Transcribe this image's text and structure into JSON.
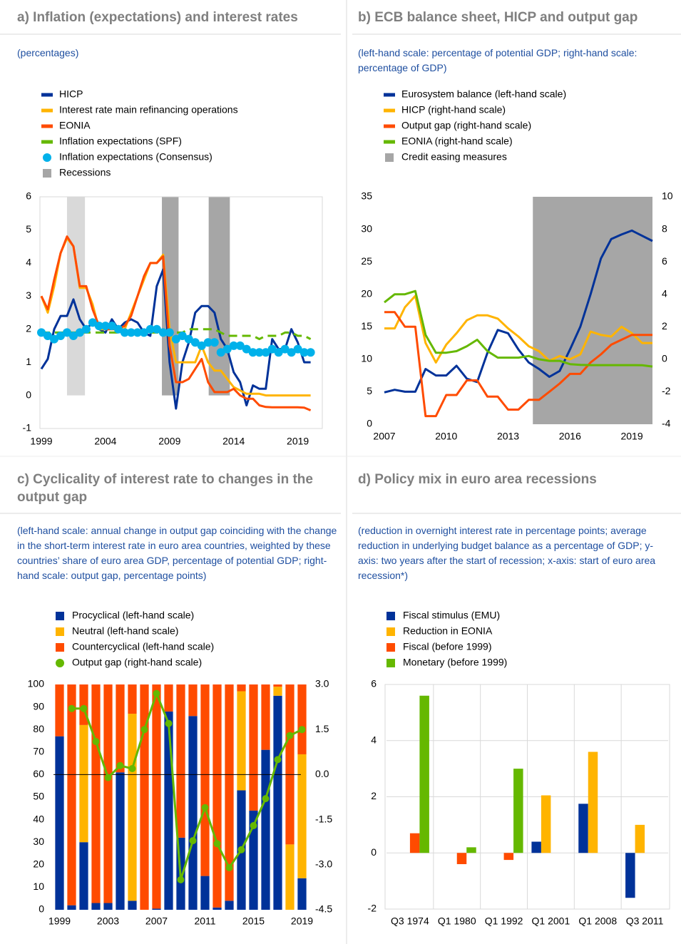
{
  "chart_data": [
    {
      "type": "line",
      "title": "a) Inflation (expectations) and interest rates",
      "subtitle": "(percentages)",
      "x": [
        1999,
        1999.5,
        2000,
        2000.5,
        2001,
        2001.5,
        2002,
        2002.5,
        2003,
        2003.5,
        2004,
        2004.5,
        2005,
        2005.5,
        2006,
        2006.5,
        2007,
        2007.5,
        2008,
        2008.5,
        2009,
        2009.5,
        2010,
        2010.5,
        2011,
        2011.5,
        2012,
        2012.5,
        2013,
        2013.5,
        2014,
        2014.5,
        2015,
        2015.5,
        2016,
        2016.5,
        2017,
        2017.5,
        2018,
        2018.5,
        2019,
        2019.5,
        2020
      ],
      "xlim": [
        1999,
        2020.8
      ],
      "xticks": [
        1999,
        2004,
        2009,
        2014,
        2019
      ],
      "ylim": [
        -1,
        6
      ],
      "yticks": [
        -1,
        0,
        1,
        2,
        3,
        4,
        5,
        6
      ],
      "series": [
        {
          "name": "HICP",
          "color": "#003299",
          "values": [
            0.8,
            1.1,
            2.0,
            2.4,
            2.4,
            2.9,
            2.3,
            2.0,
            2.2,
            2.0,
            1.9,
            2.3,
            2.0,
            2.2,
            2.3,
            2.2,
            1.9,
            1.8,
            3.3,
            3.8,
            1.0,
            -0.4,
            1.0,
            1.6,
            2.5,
            2.7,
            2.7,
            2.5,
            1.7,
            1.4,
            0.7,
            0.4,
            -0.3,
            0.3,
            0.2,
            0.2,
            1.7,
            1.4,
            1.4,
            2.0,
            1.6,
            1.0,
            1.0
          ]
        },
        {
          "name": "Interest rate main refinancing operations",
          "color": "#ffb400",
          "values": [
            3.0,
            2.5,
            3.3,
            4.3,
            4.75,
            4.5,
            3.25,
            3.25,
            2.75,
            2.0,
            2.0,
            2.0,
            2.0,
            2.0,
            2.5,
            3.0,
            3.5,
            4.0,
            4.0,
            4.25,
            2.0,
            1.0,
            1.0,
            1.0,
            1.0,
            1.5,
            1.0,
            0.75,
            0.75,
            0.5,
            0.25,
            0.15,
            0.05,
            0.05,
            0.05,
            0,
            0,
            0,
            0,
            0,
            0,
            0,
            0
          ]
        },
        {
          "name": "EONIA",
          "color": "#ff4b00",
          "values": [
            3.0,
            2.6,
            3.5,
            4.3,
            4.8,
            4.5,
            3.3,
            3.3,
            2.6,
            2.1,
            2.0,
            2.0,
            2.0,
            2.1,
            2.4,
            3.0,
            3.6,
            4.0,
            4.0,
            4.2,
            1.5,
            0.4,
            0.4,
            0.5,
            0.8,
            1.1,
            0.4,
            0.1,
            0.1,
            0.1,
            0.2,
            0.0,
            -0.1,
            -0.1,
            -0.3,
            -0.35,
            -0.36,
            -0.36,
            -0.36,
            -0.36,
            -0.36,
            -0.37,
            -0.45
          ]
        },
        {
          "name": "Inflation expectations (SPF)",
          "color": "#65b800",
          "dash": true,
          "values": [
            1.9,
            1.9,
            1.9,
            1.9,
            1.9,
            1.9,
            1.9,
            1.9,
            1.9,
            1.9,
            1.9,
            1.9,
            1.9,
            1.9,
            1.9,
            1.9,
            1.9,
            1.9,
            1.9,
            1.9,
            1.9,
            1.9,
            1.9,
            2.0,
            2.0,
            2.0,
            2.0,
            2.0,
            1.9,
            1.8,
            1.8,
            1.8,
            1.8,
            1.8,
            1.7,
            1.8,
            1.8,
            1.8,
            1.9,
            1.9,
            1.8,
            1.8,
            1.7
          ]
        },
        {
          "name": "Inflation expectations (Consensus)",
          "color": "#00b1ea",
          "marker": "circle",
          "line": false,
          "values": [
            1.9,
            1.8,
            1.7,
            1.8,
            1.9,
            1.8,
            1.9,
            2.0,
            2.2,
            2.1,
            2.1,
            2.1,
            2.0,
            1.9,
            1.9,
            1.9,
            1.9,
            2.0,
            2.0,
            1.9,
            1.9,
            1.7,
            1.8,
            1.7,
            1.6,
            1.5,
            1.6,
            1.6,
            1.3,
            1.4,
            1.5,
            1.5,
            1.4,
            1.3,
            1.3,
            1.3,
            1.4,
            1.3,
            1.4,
            1.3,
            1.4,
            1.3,
            1.3
          ]
        }
      ],
      "shading": {
        "name": "Recessions",
        "color": "#a6a6a6",
        "spans": [
          [
            2001.0,
            2002.4
          ],
          [
            2008.4,
            2009.7
          ],
          [
            2012.05,
            2013.7
          ]
        ],
        "span_colors": [
          "#d9d9d9",
          "#a6a6a6",
          "#a6a6a6"
        ]
      },
      "frame": true
    },
    {
      "type": "line",
      "title": "b) ECB balance sheet, HICP and output gap",
      "subtitle": "(left-hand scale: percentage of potential GDP; right-hand scale: percentage of GDP)",
      "x": [
        2007,
        2007.5,
        2008,
        2008.5,
        2009,
        2009.5,
        2010,
        2010.5,
        2011,
        2011.5,
        2012,
        2012.5,
        2013,
        2013.5,
        2014,
        2014.5,
        2015,
        2015.5,
        2016,
        2016.5,
        2017,
        2017.5,
        2018,
        2018.5,
        2019,
        2019.5,
        2020
      ],
      "xlim": [
        2007,
        2020
      ],
      "xticks": [
        2007,
        2010,
        2013,
        2016,
        2019
      ],
      "ylim": [
        0,
        35
      ],
      "yticks": [
        0,
        5,
        10,
        15,
        20,
        25,
        30,
        35
      ],
      "y2lim": [
        -4,
        10
      ],
      "y2ticks": [
        -4,
        -2,
        0,
        2,
        4,
        6,
        8,
        10
      ],
      "series": [
        {
          "name": "Eurosystem balance (left-hand scale)",
          "color": "#003299",
          "values": [
            4.9,
            5.3,
            5.0,
            5.0,
            8.5,
            7.5,
            7.5,
            9.0,
            7.0,
            6.5,
            11,
            14.5,
            14,
            11.5,
            9.5,
            8.5,
            7.3,
            8.2,
            11.5,
            15,
            20,
            25.5,
            28.5,
            29.2,
            29.8,
            29,
            28.2
          ]
        },
        {
          "name": "HICP (right-hand scale)",
          "color": "#ffb400",
          "axis": "y2",
          "values": [
            1.9,
            1.9,
            3.2,
            3.9,
            1.0,
            -0.2,
            0.9,
            1.6,
            2.4,
            2.7,
            2.7,
            2.5,
            1.9,
            1.4,
            0.8,
            0.5,
            -0.1,
            0.2,
            0.0,
            0.3,
            1.7,
            1.5,
            1.4,
            2.0,
            1.6,
            1.0,
            1.0
          ]
        },
        {
          "name": "Output gap (right-hand scale)",
          "color": "#ff4b00",
          "axis": "y2",
          "values": [
            2.9,
            2.9,
            2.0,
            2.0,
            -3.5,
            -3.5,
            -2.2,
            -2.2,
            -1.3,
            -1.3,
            -2.3,
            -2.3,
            -3.1,
            -3.1,
            -2.5,
            -2.5,
            -2.0,
            -1.5,
            -0.9,
            -0.9,
            -0.2,
            0.3,
            0.9,
            1.2,
            1.5,
            1.5,
            1.5
          ]
        },
        {
          "name": "EONIA (right-hand scale)",
          "color": "#65b800",
          "axis": "y2",
          "values": [
            3.5,
            4.0,
            4.0,
            4.2,
            1.5,
            0.4,
            0.4,
            0.5,
            0.8,
            1.2,
            0.5,
            0.1,
            0.1,
            0.1,
            0.2,
            0.0,
            -0.1,
            -0.1,
            -0.3,
            -0.35,
            -0.36,
            -0.36,
            -0.36,
            -0.36,
            -0.36,
            -0.37,
            -0.45
          ]
        }
      ],
      "shading": {
        "name": "Credit easing measures",
        "color": "#a6a6a6",
        "spans": [
          [
            2014.2,
            2020
          ]
        ],
        "span_colors": [
          "#a6a6a6"
        ]
      }
    },
    {
      "type": "bar",
      "stacked": true,
      "title": "c) Cyclicality of interest rate to changes in the output gap",
      "subtitle": "(left-hand scale: annual change in output gap coinciding with the change in the short-term interest rate in euro area countries, weighted by these countries’ share of euro area GDP, percentage of potential GDP; right-hand scale: output gap, percentage points)",
      "categories": [
        1999,
        null,
        null,
        null,
        2003,
        null,
        null,
        null,
        2007,
        null,
        null,
        null,
        2011,
        null,
        null,
        null,
        2015,
        null,
        null,
        null,
        2019
      ],
      "ylim": [
        0,
        100
      ],
      "yticks": [
        0,
        10,
        20,
        30,
        40,
        50,
        60,
        70,
        80,
        90,
        100
      ],
      "y2lim": [
        -4.5,
        3
      ],
      "y2ticks": [
        {
          "value": 3,
          "label": "3.0"
        },
        1.5,
        {
          "value": 0,
          "label": "0.0"
        },
        -1.5,
        {
          "value": -3,
          "label": "-3.0"
        },
        -4.5
      ],
      "series": [
        {
          "name": "Procyclical (left-hand scale)",
          "color": "#003299",
          "values": [
            77,
            2,
            30,
            3,
            3,
            61,
            4,
            0,
            0.5,
            88,
            32,
            86,
            15,
            1,
            4,
            53,
            44,
            71,
            95,
            0,
            14
          ]
        },
        {
          "name": "Neutral (left-hand scale)",
          "color": "#ffb400",
          "values": [
            0,
            0,
            52,
            0,
            0,
            0,
            83,
            0,
            0,
            0,
            0,
            0,
            0,
            0,
            0,
            44,
            0,
            0,
            4,
            29,
            55
          ]
        },
        {
          "name": "Countercyclical (left-hand scale)",
          "color": "#ff4b00",
          "values": [
            23,
            98,
            18,
            97,
            97,
            39,
            13,
            100,
            99.5,
            12,
            68,
            14,
            85,
            99,
            96,
            3,
            56,
            29,
            1,
            71,
            31
          ]
        },
        {
          "name": "Output gap (right-hand scale)",
          "color": "#65b800",
          "type": "line",
          "marker": "circle",
          "axis": "y2",
          "values": [
            null,
            2.2,
            2.2,
            1.1,
            -0.1,
            0.3,
            0.2,
            1.5,
            2.7,
            1.7,
            -3.5,
            -2.2,
            -1.1,
            -2.3,
            -3.1,
            -2.5,
            -1.7,
            -0.8,
            0.5,
            1.3,
            1.5
          ]
        }
      ],
      "zero_line": true
    },
    {
      "type": "bar",
      "title": "d) Policy mix in euro area recessions",
      "subtitle": "(reduction in overnight interest rate in percentage points; average reduction in underlying budget balance as a percentage of GDP; y-axis: two years after the start of recession; x-axis: start of euro area recession*)",
      "categories": [
        "Q3 1974",
        "Q1 1980",
        "Q1 1992",
        "Q1 2001",
        "Q1 2008",
        "Q3 2011"
      ],
      "ylim": [
        -2,
        6
      ],
      "yticks": [
        -2,
        0,
        2,
        4,
        6
      ],
      "series": [
        {
          "name": "Fiscal stimulus (EMU)",
          "color": "#003299",
          "values": [
            null,
            null,
            null,
            0.4,
            1.75,
            -1.6
          ]
        },
        {
          "name": "Reduction in EONIA",
          "color": "#ffb400",
          "values": [
            null,
            null,
            null,
            2.05,
            3.6,
            1.0
          ]
        },
        {
          "name": "Fiscal (before 1999)",
          "color": "#ff4b00",
          "values": [
            0.7,
            -0.4,
            -0.25,
            null,
            null,
            null
          ]
        },
        {
          "name": "Monetary (before 1999)",
          "color": "#65b800",
          "values": [
            5.6,
            0.2,
            3.0,
            null,
            null,
            null
          ]
        }
      ],
      "grid": true
    }
  ]
}
